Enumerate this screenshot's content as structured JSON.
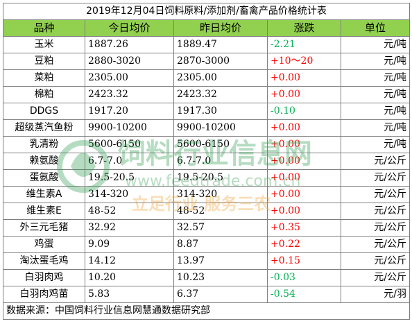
{
  "title": "2019年12月04日饲料原料/添加剂/畜禽产品价格统计表",
  "headers": {
    "name": "品种",
    "today": "今日均价",
    "yesterday": "昨日均价",
    "change": "涨跌",
    "unit": "单位"
  },
  "rows": [
    {
      "name": "玉米",
      "today": "1887.26",
      "yesterday": "1889.47",
      "change": "-2.21",
      "direction": "down",
      "unit": "元/吨"
    },
    {
      "name": "豆粕",
      "today": "2880-3020",
      "yesterday": "2870-3000",
      "change": "+10～20",
      "direction": "up",
      "unit": "元/吨"
    },
    {
      "name": "菜粕",
      "today": "2305.00",
      "yesterday": "2305.00",
      "change": "+0.00",
      "direction": "up",
      "unit": "元/吨"
    },
    {
      "name": "棉粕",
      "today": "2423.32",
      "yesterday": "2423.32",
      "change": "+0.00",
      "direction": "up",
      "unit": "元/吨"
    },
    {
      "name": "DDGS",
      "today": "1917.20",
      "yesterday": "1917.30",
      "change": "-0.10",
      "direction": "down",
      "unit": "元/吨"
    },
    {
      "name": "超级蒸汽鱼粉",
      "today": "9900-10200",
      "yesterday": "9900-10200",
      "change": "+0.00",
      "direction": "up",
      "unit": "元/吨"
    },
    {
      "name": "乳清粉",
      "today": "5600-6150",
      "yesterday": "5600-6150",
      "change": "+0.00",
      "direction": "up",
      "unit": "元/吨"
    },
    {
      "name": "赖氨酸",
      "today": "6.7-7.0",
      "yesterday": "6.7-7.0",
      "change": "+0.00",
      "direction": "up",
      "unit": "元/公斤"
    },
    {
      "name": "蛋氨酸",
      "today": "19.5-20.5",
      "yesterday": "19.5-20.5",
      "change": "+0.00",
      "direction": "up",
      "unit": "元/公斤"
    },
    {
      "name": "维生素A",
      "today": "314-320",
      "yesterday": "314-320",
      "change": "+0.00",
      "direction": "up",
      "unit": "元/公斤"
    },
    {
      "name": "维生素E",
      "today": "48-52",
      "yesterday": "48-52",
      "change": "+0.00",
      "direction": "up",
      "unit": "元/公斤"
    },
    {
      "name": "外三元毛猪",
      "today": "32.92",
      "yesterday": "32.57",
      "change": "+0.35",
      "direction": "up",
      "unit": "元/公斤"
    },
    {
      "name": "鸡蛋",
      "today": "9.09",
      "yesterday": "8.87",
      "change": "+0.22",
      "direction": "up",
      "unit": "元/公斤"
    },
    {
      "name": "淘汰蛋毛鸡",
      "today": "14.12",
      "yesterday": "13.97",
      "change": "+0.15",
      "direction": "up",
      "unit": "元/公斤"
    },
    {
      "name": "白羽肉鸡",
      "today": "10.20",
      "yesterday": "10.23",
      "change": "-0.03",
      "direction": "down",
      "unit": "元/公斤"
    },
    {
      "name": "白羽肉鸡苗",
      "today": "5.83",
      "yesterday": "6.37",
      "change": "-0.54",
      "direction": "down",
      "unit": "元/羽"
    }
  ],
  "footer": "数据来源：中国饲料行业信息网慧通数据研究部",
  "watermark": {
    "name": "饲料行业信息网",
    "url": "www.feedtrade.com.cn",
    "slogan": "立足行业 服务三农"
  },
  "colors": {
    "header_bg": "#92d050",
    "up": "#ff0000",
    "down": "#00b050",
    "border": "#7f7f7f"
  }
}
